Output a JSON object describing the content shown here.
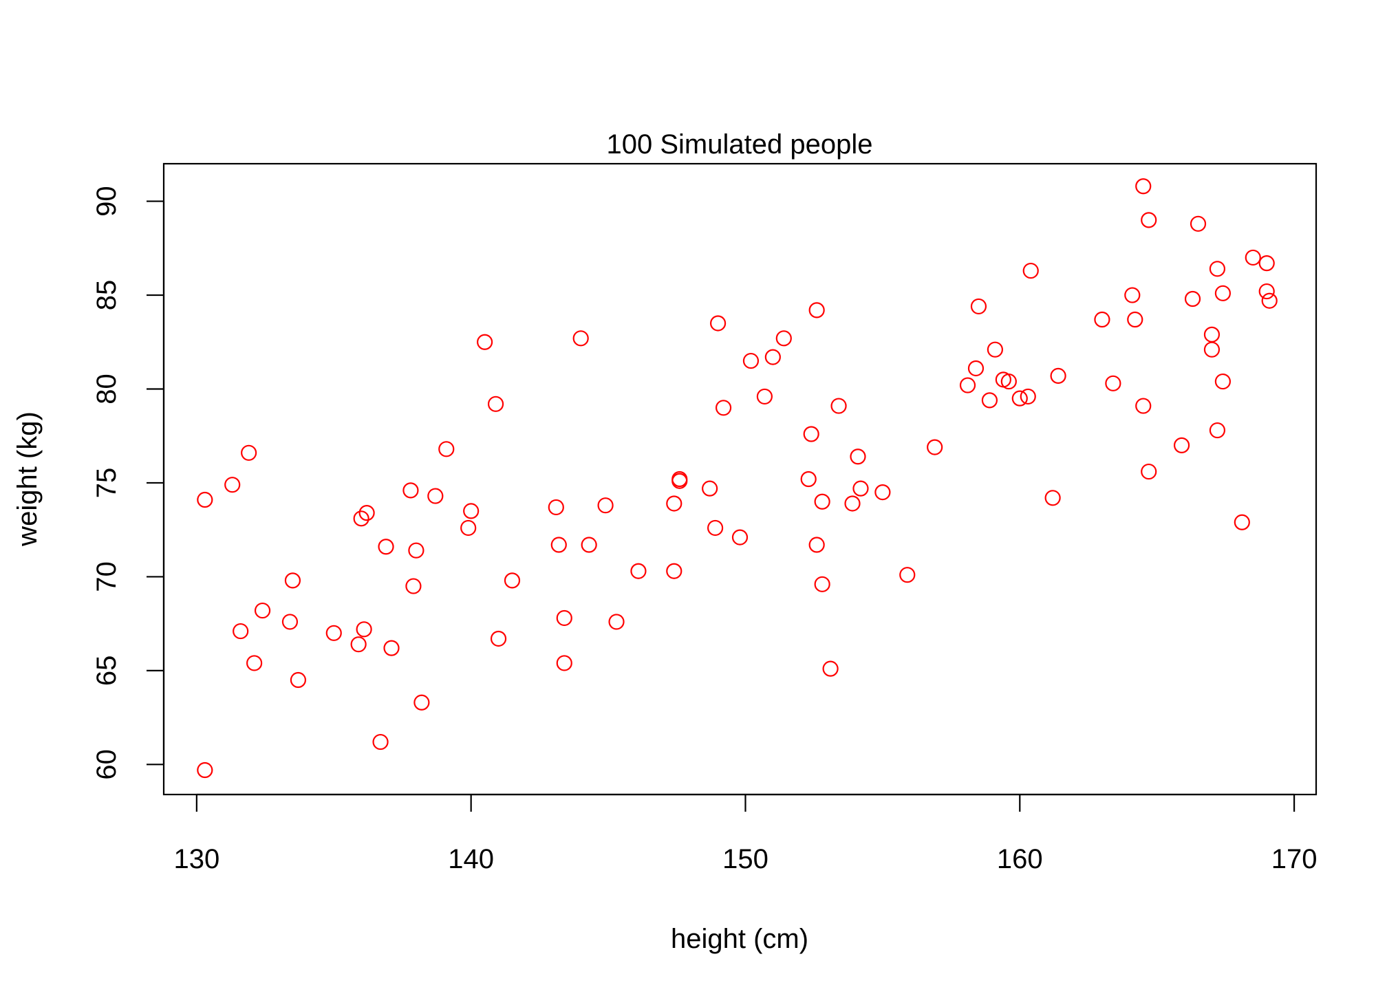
{
  "chart_data": {
    "type": "scatter",
    "title": "100 Simulated people",
    "xlabel": "height (cm)",
    "ylabel": "weight (kg)",
    "xlim": [
      128.8,
      170.8
    ],
    "ylim": [
      58.4,
      92.0
    ],
    "xticks": [
      130,
      140,
      150,
      160,
      170
    ],
    "yticks": [
      60,
      65,
      70,
      75,
      80,
      85,
      90
    ],
    "grid": false,
    "legend": "none",
    "marker_color": "#ff0000",
    "marker": "open-circle",
    "series": [
      {
        "points": [
          [
            130.3,
            74.1
          ],
          [
            130.3,
            59.7
          ],
          [
            131.3,
            74.9
          ],
          [
            131.6,
            67.1
          ],
          [
            131.9,
            76.6
          ],
          [
            132.1,
            65.4
          ],
          [
            132.4,
            68.2
          ],
          [
            133.4,
            67.6
          ],
          [
            133.5,
            69.8
          ],
          [
            133.7,
            64.5
          ],
          [
            135.0,
            67.0
          ],
          [
            135.9,
            66.4
          ],
          [
            136.0,
            73.1
          ],
          [
            136.2,
            73.4
          ],
          [
            136.1,
            67.2
          ],
          [
            136.7,
            61.2
          ],
          [
            136.9,
            71.6
          ],
          [
            137.1,
            66.2
          ],
          [
            137.8,
            74.6
          ],
          [
            137.9,
            69.5
          ],
          [
            138.0,
            71.4
          ],
          [
            138.2,
            63.3
          ],
          [
            138.7,
            74.3
          ],
          [
            139.1,
            76.8
          ],
          [
            139.9,
            72.6
          ],
          [
            140.0,
            73.5
          ],
          [
            140.5,
            82.5
          ],
          [
            140.9,
            79.2
          ],
          [
            141.0,
            66.7
          ],
          [
            141.5,
            69.8
          ],
          [
            143.1,
            73.7
          ],
          [
            143.2,
            71.7
          ],
          [
            143.4,
            67.8
          ],
          [
            143.4,
            65.4
          ],
          [
            144.0,
            82.7
          ],
          [
            144.3,
            71.7
          ],
          [
            144.9,
            73.8
          ],
          [
            145.3,
            67.6
          ],
          [
            146.1,
            70.3
          ],
          [
            147.4,
            70.3
          ],
          [
            147.4,
            73.9
          ],
          [
            147.6,
            75.2
          ],
          [
            147.6,
            75.1
          ],
          [
            148.7,
            74.7
          ],
          [
            148.9,
            72.6
          ],
          [
            149.0,
            83.5
          ],
          [
            149.2,
            79.0
          ],
          [
            149.8,
            72.1
          ],
          [
            150.2,
            81.5
          ],
          [
            150.7,
            79.6
          ],
          [
            151.0,
            81.7
          ],
          [
            151.4,
            82.7
          ],
          [
            152.3,
            75.2
          ],
          [
            152.4,
            77.6
          ],
          [
            152.6,
            71.7
          ],
          [
            152.6,
            84.2
          ],
          [
            152.8,
            69.6
          ],
          [
            152.8,
            74.0
          ],
          [
            153.1,
            65.1
          ],
          [
            153.4,
            79.1
          ],
          [
            153.9,
            73.9
          ],
          [
            154.1,
            76.4
          ],
          [
            154.2,
            74.7
          ],
          [
            155.0,
            74.5
          ],
          [
            155.9,
            70.1
          ],
          [
            156.9,
            76.9
          ],
          [
            158.1,
            80.2
          ],
          [
            158.4,
            81.1
          ],
          [
            158.5,
            84.4
          ],
          [
            158.9,
            79.4
          ],
          [
            159.1,
            82.1
          ],
          [
            159.4,
            80.5
          ],
          [
            159.6,
            80.4
          ],
          [
            160.0,
            79.5
          ],
          [
            160.3,
            79.6
          ],
          [
            160.4,
            86.3
          ],
          [
            161.2,
            74.2
          ],
          [
            161.4,
            80.7
          ],
          [
            163.0,
            83.7
          ],
          [
            163.4,
            80.3
          ],
          [
            164.1,
            85.0
          ],
          [
            164.2,
            83.7
          ],
          [
            164.5,
            79.1
          ],
          [
            164.5,
            90.8
          ],
          [
            164.7,
            89.0
          ],
          [
            164.7,
            75.6
          ],
          [
            165.9,
            77.0
          ],
          [
            166.3,
            84.8
          ],
          [
            166.5,
            88.8
          ],
          [
            167.0,
            82.9
          ],
          [
            167.0,
            82.1
          ],
          [
            167.2,
            77.8
          ],
          [
            167.2,
            86.4
          ],
          [
            167.4,
            85.1
          ],
          [
            167.4,
            80.4
          ],
          [
            168.1,
            72.9
          ],
          [
            168.5,
            87.0
          ],
          [
            169.0,
            86.7
          ],
          [
            169.0,
            85.2
          ],
          [
            169.1,
            84.7
          ]
        ]
      }
    ]
  }
}
